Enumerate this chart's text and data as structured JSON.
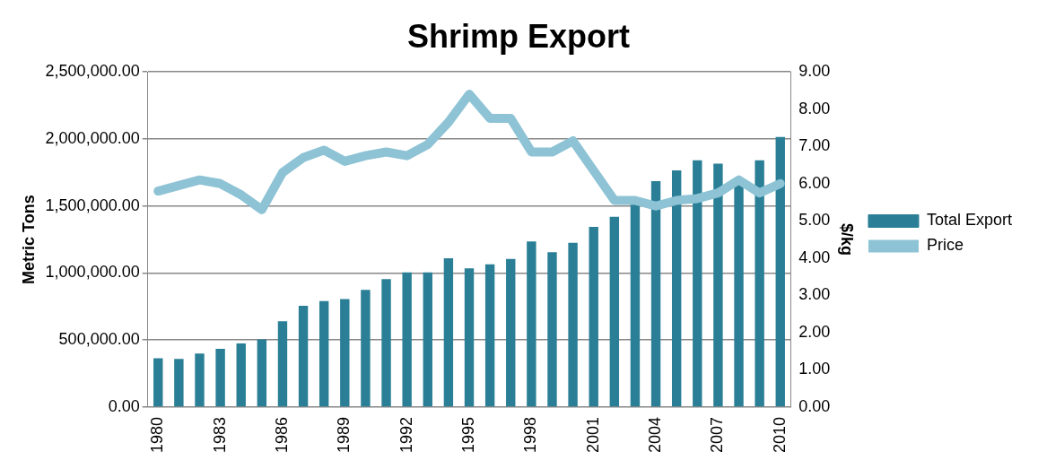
{
  "chart_data": {
    "type": "bar",
    "title": "Shrimp Export",
    "ylabel": "Metric Tons",
    "y2label": "$/kg",
    "categories": [
      "1980",
      null,
      null,
      "1983",
      null,
      null,
      "1986",
      null,
      null,
      "1989",
      null,
      null,
      "1992",
      null,
      null,
      "1995",
      null,
      null,
      "1998",
      null,
      null,
      "2001",
      null,
      null,
      "2004",
      null,
      null,
      "2007",
      null,
      null,
      "2010"
    ],
    "series": [
      {
        "name": "Total Export",
        "color": "#2a7f96",
        "values": [
          365000,
          360000,
          400000,
          435000,
          475000,
          505000,
          640000,
          755000,
          790000,
          805000,
          875000,
          955000,
          1005000,
          1005000,
          1110000,
          1035000,
          1065000,
          1105000,
          1235000,
          1155000,
          1225000,
          1345000,
          1420000,
          1530000,
          1685000,
          1765000,
          1840000,
          1815000,
          1710000,
          1840000,
          2015000
        ]
      },
      {
        "name": "Price",
        "type": "line",
        "axis": "y2",
        "color": "#8dc3d5",
        "values": [
          5.8,
          5.95,
          6.1,
          6.0,
          5.7,
          5.3,
          6.3,
          6.7,
          6.9,
          6.6,
          6.75,
          6.85,
          6.75,
          7.05,
          7.65,
          8.4,
          7.75,
          7.75,
          6.85,
          6.85,
          7.15,
          6.35,
          5.55,
          5.55,
          5.4,
          5.55,
          5.6,
          5.75,
          6.1,
          5.75,
          6.0
        ]
      }
    ],
    "ylim": [
      0,
      2500000
    ],
    "yticks": [
      {
        "value": 0,
        "label": "0.00"
      },
      {
        "value": 500000,
        "label": "500,000.00"
      },
      {
        "value": 1000000,
        "label": "1,000,000.00"
      },
      {
        "value": 1500000,
        "label": "1,500,000.00"
      },
      {
        "value": 2000000,
        "label": "2,000,000.00"
      },
      {
        "value": 2500000,
        "label": "2,500,000.00"
      }
    ],
    "y2lim": [
      0,
      9
    ],
    "y2ticks": [
      {
        "value": 0,
        "label": "0.00"
      },
      {
        "value": 1,
        "label": "1.00"
      },
      {
        "value": 2,
        "label": "2.00"
      },
      {
        "value": 3,
        "label": "3.00"
      },
      {
        "value": 4,
        "label": "4.00"
      },
      {
        "value": 5,
        "label": "5.00"
      },
      {
        "value": 6,
        "label": "6.00"
      },
      {
        "value": 7,
        "label": "7.00"
      },
      {
        "value": 8,
        "label": "8.00"
      },
      {
        "value": 9,
        "label": "9.00"
      }
    ],
    "grid": "y",
    "legend": "right",
    "marker": "none"
  }
}
